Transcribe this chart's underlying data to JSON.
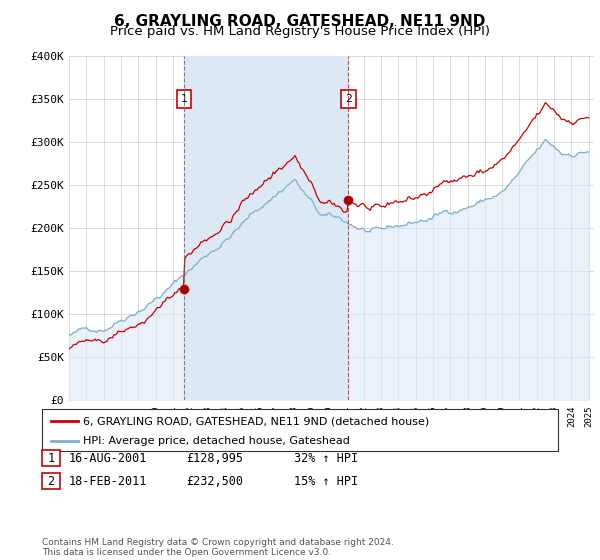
{
  "title": "6, GRAYLING ROAD, GATESHEAD, NE11 9ND",
  "subtitle": "Price paid vs. HM Land Registry's House Price Index (HPI)",
  "footer": "Contains HM Land Registry data © Crown copyright and database right 2024.\nThis data is licensed under the Open Government Licence v3.0.",
  "legend_line1": "6, GRAYLING ROAD, GATESHEAD, NE11 9ND (detached house)",
  "legend_line2": "HPI: Average price, detached house, Gateshead",
  "sale1_date": "16-AUG-2001",
  "sale1_price": "£128,995",
  "sale1_hpi": "32% ↑ HPI",
  "sale2_date": "18-FEB-2011",
  "sale2_price": "£232,500",
  "sale2_hpi": "15% ↑ HPI",
  "ylim": [
    0,
    400000
  ],
  "yticks": [
    0,
    50000,
    100000,
    150000,
    200000,
    250000,
    300000,
    350000,
    400000
  ],
  "ytick_labels": [
    "£0",
    "£50K",
    "£100K",
    "£150K",
    "£200K",
    "£250K",
    "£300K",
    "£350K",
    "£400K"
  ],
  "hpi_fill_color": "#dce9f5",
  "hpi_line_color": "#7ab0d4",
  "price_color": "#cc0000",
  "marker_box_color": "#cc0000",
  "sale1_vline_color": "#888888",
  "sale2_vline_color": "#cc0000",
  "background_color": "#ffffff",
  "grid_color": "#cccccc",
  "title_fontsize": 11,
  "subtitle_fontsize": 9.5
}
